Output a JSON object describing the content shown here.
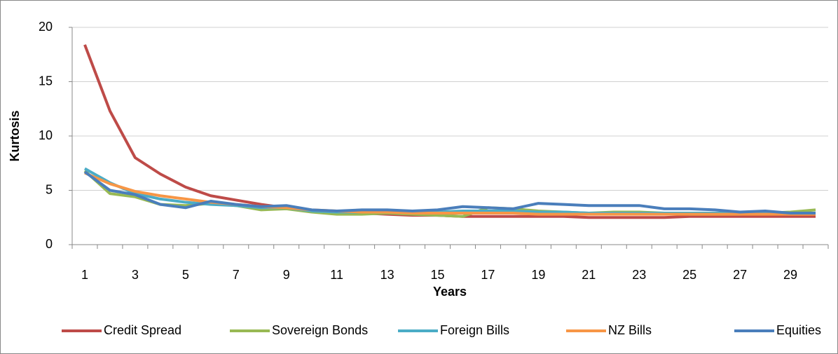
{
  "chart_data": {
    "type": "line",
    "y_label": "Kurtosis",
    "x_label": "Years",
    "categories": [
      1,
      null,
      3,
      null,
      5,
      null,
      7,
      null,
      9,
      null,
      11,
      null,
      13,
      null,
      15,
      null,
      17,
      null,
      19,
      null,
      21,
      null,
      23,
      null,
      25,
      null,
      27,
      null,
      29,
      null
    ],
    "ylim": [
      0,
      20
    ],
    "yticks": [
      0,
      5,
      10,
      15,
      20
    ],
    "grid": true,
    "legend": "bottom",
    "series": [
      {
        "name": "Credit Spread",
        "color": "#be4b48",
        "values": [
          18.4,
          12.3,
          8.0,
          6.5,
          5.3,
          4.5,
          4.1,
          3.7,
          3.4,
          3.1,
          3.0,
          2.9,
          2.8,
          2.7,
          2.7,
          2.6,
          2.6,
          2.6,
          2.6,
          2.6,
          2.5,
          2.5,
          2.5,
          2.5,
          2.6,
          2.6,
          2.6,
          2.6,
          2.6,
          2.6
        ]
      },
      {
        "name": "Sovereign Bonds",
        "color": "#98b954",
        "values": [
          6.8,
          4.7,
          4.4,
          3.7,
          3.6,
          3.8,
          3.6,
          3.2,
          3.3,
          3.0,
          2.8,
          2.8,
          2.9,
          2.8,
          2.7,
          2.6,
          3.4,
          3.3,
          3.1,
          3.0,
          2.9,
          3.0,
          3.0,
          2.9,
          2.8,
          2.8,
          2.8,
          2.9,
          3.0,
          3.2
        ]
      },
      {
        "name": "Foreign Bills",
        "color": "#4bacc6",
        "values": [
          7.0,
          5.7,
          4.7,
          4.2,
          3.9,
          3.7,
          3.6,
          3.4,
          3.4,
          3.1,
          3.0,
          3.0,
          3.0,
          3.0,
          3.0,
          3.1,
          3.1,
          3.1,
          3.0,
          3.0,
          2.9,
          2.9,
          2.9,
          2.9,
          2.9,
          2.9,
          2.9,
          2.9,
          2.9,
          2.9
        ]
      },
      {
        "name": "NZ Bills",
        "color": "#f79646",
        "values": [
          6.6,
          5.6,
          4.9,
          4.5,
          4.2,
          3.9,
          3.7,
          3.5,
          3.4,
          3.2,
          3.1,
          3.0,
          3.0,
          2.9,
          2.9,
          2.9,
          2.9,
          2.9,
          2.8,
          2.8,
          2.8,
          2.8,
          2.8,
          2.8,
          2.8,
          2.8,
          2.8,
          2.8,
          2.8,
          2.8
        ]
      },
      {
        "name": "Equities",
        "color": "#4a7ebb",
        "values": [
          6.7,
          5.0,
          4.6,
          3.7,
          3.4,
          4.0,
          3.7,
          3.5,
          3.6,
          3.2,
          3.1,
          3.2,
          3.2,
          3.1,
          3.2,
          3.5,
          3.4,
          3.3,
          3.8,
          3.7,
          3.6,
          3.6,
          3.6,
          3.3,
          3.3,
          3.2,
          3.0,
          3.1,
          2.9,
          2.9
        ]
      }
    ]
  }
}
